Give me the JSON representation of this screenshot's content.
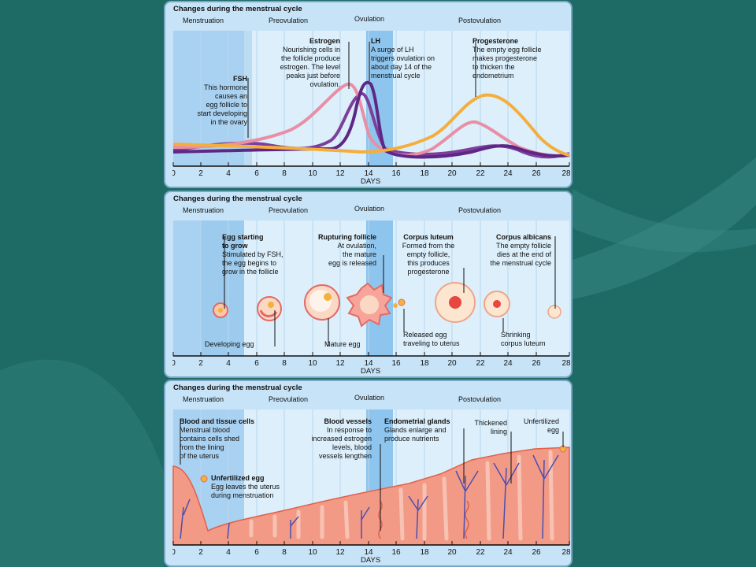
{
  "background_color": "#1e6b66",
  "panel_title": "Changes during the menstrual cycle",
  "phases": {
    "menstruation": "Menstruation",
    "preovulation": "Preovulation",
    "ovulation": "Ovulation",
    "postovulation": "Postovulation"
  },
  "axis": {
    "ticks": [
      "0",
      "2",
      "4",
      "6",
      "8",
      "10",
      "12",
      "14",
      "16",
      "18",
      "20",
      "22",
      "24",
      "26",
      "28"
    ],
    "label": "DAYS"
  },
  "panel1": {
    "fsh": {
      "title": "FSH",
      "text": "This hormone\ncauses an\negg follicle to\nstart developing\nin the ovary"
    },
    "estrogen": {
      "title": "Estrogen",
      "text": "Nourishing cells in\nthe follicle produce\nestrogen. The level\npeaks just before\novulation."
    },
    "lh": {
      "title": "LH",
      "text": "A surge of LH\ntriggers ovulation on\nabout day 14 of the\nmenstrual cycle"
    },
    "progesterone": {
      "title": "Progesterone",
      "text": "The empty egg follicle\nmakes progesterone\nto thicken the\nendometrium"
    },
    "colors": {
      "fsh": "#7d3f9a",
      "estrogen": "#e98fa5",
      "lh": "#6a2f8c",
      "progesterone": "#f4ae3c"
    }
  },
  "panel2": {
    "egg_start": {
      "title": "Egg starting\nto grow",
      "text": "Stimulated by FSH,\nthe egg begins to\ngrow in the follicle"
    },
    "rupturing": {
      "title": "Rupturing follicle",
      "text": "At ovulation,\nthe mature\negg is released"
    },
    "corpus_luteum": {
      "title": "Corpus luteum",
      "text": "Formed from the\nempty follicle,\nthis produces\nprogesterone"
    },
    "corpus_albicans": {
      "title": "Corpus albicans",
      "text": "The empty follicle\ndies at the end of\nthe menstrual cycle"
    },
    "developing_egg": "Developing egg",
    "mature_egg": "Mature egg",
    "released_egg": "Released egg\ntraveling to uterus",
    "shrinking": "Shrinking\ncorpus luteum"
  },
  "panel3": {
    "blood_tissue": {
      "title": "Blood and tissue cells",
      "text": "Menstrual blood\ncontains cells shed\nfrom the lining\nof the uterus"
    },
    "unfertilized1": {
      "title": "Unfertilized egg",
      "text": "Egg leaves the uterus\nduring menstruation"
    },
    "blood_vessels": {
      "title": "Blood vessels",
      "text": "In response to\nincreased estrogen\nlevels, blood\nvessels lengthen"
    },
    "endometrial": {
      "title": "Endometrial glands",
      "text": "Glands enlarge and\nproduce nutrients"
    },
    "thickened": "Thickened\nlining",
    "unfertilized2": "Unfertilized\negg"
  }
}
